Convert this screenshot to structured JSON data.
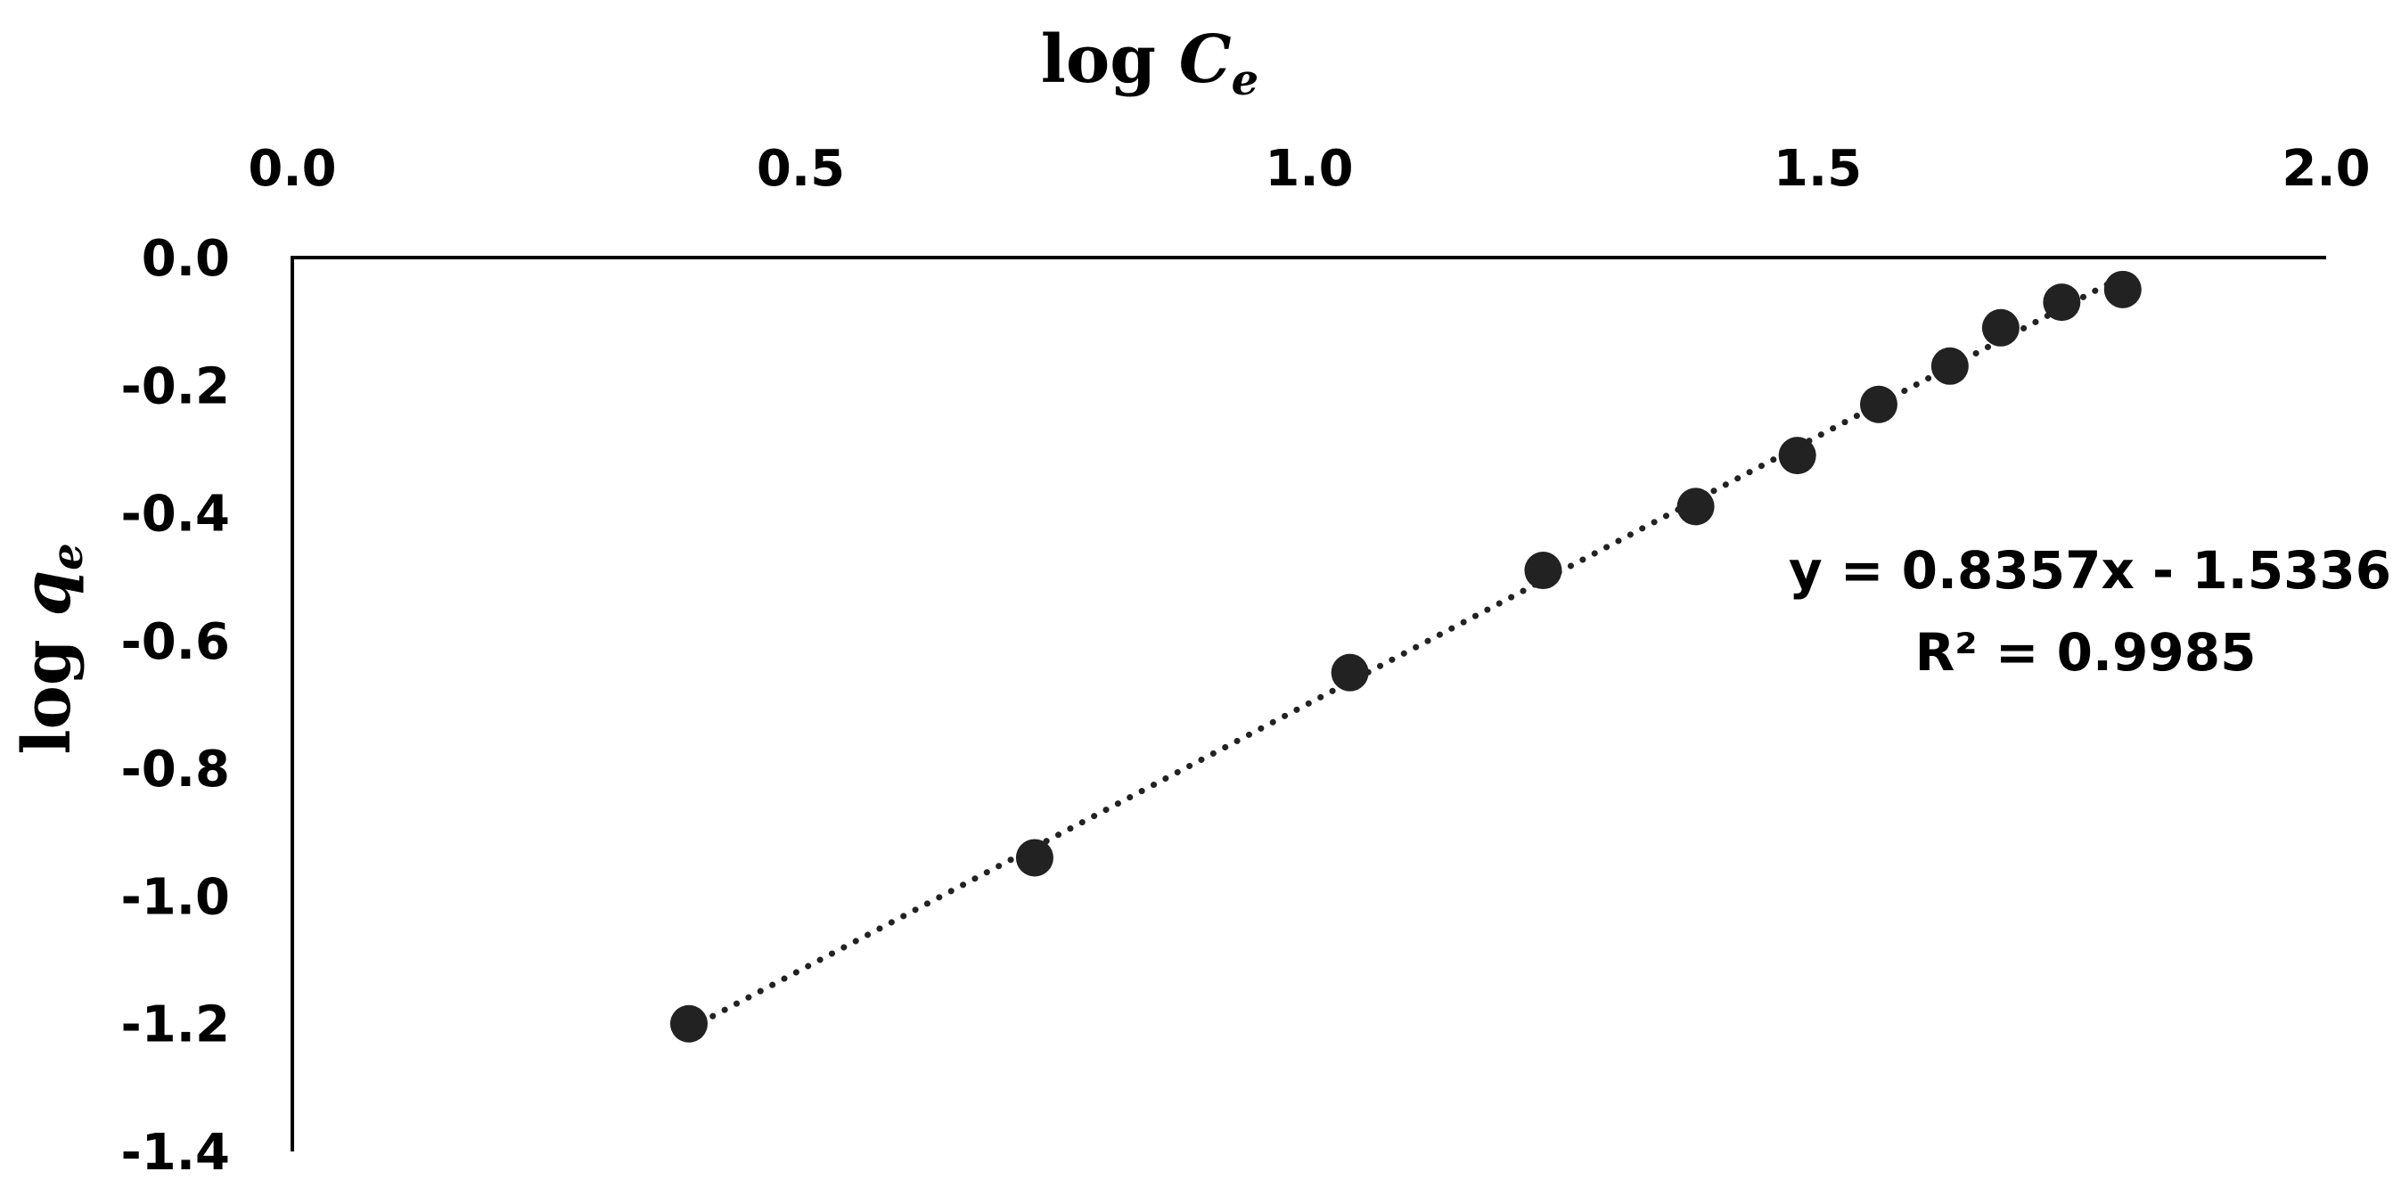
{
  "chart_data": {
    "type": "scatter",
    "title": "",
    "xlabel": {
      "main": "log ",
      "var": "C",
      "sub": "e"
    },
    "ylabel": {
      "main": "log ",
      "var": "q",
      "sub": "e"
    },
    "xlim": [
      0.0,
      2.0
    ],
    "ylim": [
      -1.4,
      0.0
    ],
    "x_axis_position": "top",
    "x_ticks": [
      "0.0",
      "0.5",
      "1.0",
      "1.5",
      "2.0"
    ],
    "y_ticks": [
      "0.0",
      "-0.2",
      "-0.4",
      "-0.6",
      "-0.8",
      "-1.0",
      "-1.2",
      "-1.4"
    ],
    "grid": false,
    "legend": "none",
    "marker_color": "#222222",
    "series": [
      {
        "x": [
          0.39,
          0.73,
          1.04,
          1.23,
          1.38,
          1.48,
          1.56,
          1.63,
          1.68,
          1.74,
          1.8
        ],
        "y": [
          -1.2,
          -0.94,
          -0.65,
          -0.49,
          -0.39,
          -0.31,
          -0.23,
          -0.17,
          -0.11,
          -0.07,
          -0.05
        ]
      }
    ],
    "trendline": {
      "type": "linear",
      "style": "dotted",
      "slope": 0.8357,
      "intercept": -1.5336,
      "x_range": [
        0.39,
        1.8
      ]
    },
    "annotations": {
      "equation": "y = 0.8357x - 1.5336",
      "r_squared": "R² = 0.9985"
    }
  }
}
